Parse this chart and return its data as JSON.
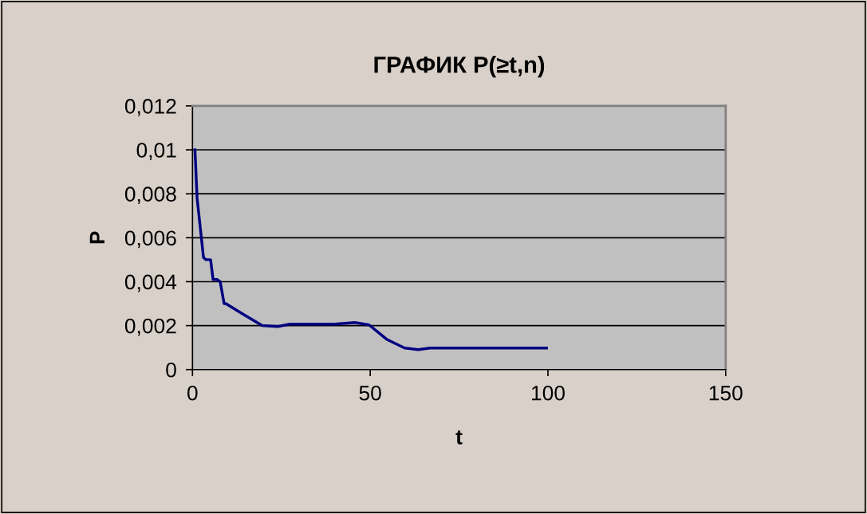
{
  "chart_data": {
    "type": "line",
    "title": "ГРАФИК P(≥t,n)",
    "xlabel": "t",
    "ylabel": "P",
    "x": [
      0.7,
      1.3,
      3.1,
      3.8,
      5.1,
      5.8,
      6.9,
      7.8,
      8.9,
      9.4,
      13.4,
      19.6,
      24,
      27.4,
      40,
      45.7,
      49.7,
      54.6,
      59.7,
      63.5,
      66.8,
      80,
      99.6
    ],
    "series": [
      {
        "color": "#000080",
        "values": [
          0.01,
          0.0078,
          0.0051,
          0.005,
          0.005,
          0.0041,
          0.0041,
          0.004,
          0.003,
          0.003,
          0.0026,
          0.002,
          0.00196,
          0.00207,
          0.00207,
          0.00214,
          0.00203,
          0.00138,
          0.00098,
          0.00091,
          0.00098,
          0.00098,
          0.00098
        ]
      }
    ],
    "xlim": [
      0,
      150
    ],
    "xticks": [
      0,
      50,
      100,
      150
    ],
    "ylim": [
      0,
      0.012
    ],
    "yticks": [
      0,
      {
        "value": 0.002,
        "label": "0,002"
      },
      {
        "value": 0.004,
        "label": "0,004"
      },
      {
        "value": 0.006,
        "label": "0,006"
      },
      {
        "value": 0.008,
        "label": "0,008"
      },
      {
        "value": 0.01,
        "label": "0,01"
      },
      {
        "value": 0.012,
        "label": "0,012"
      }
    ],
    "grid": "y",
    "marker": "none",
    "line_style": "solid",
    "legend": false
  }
}
